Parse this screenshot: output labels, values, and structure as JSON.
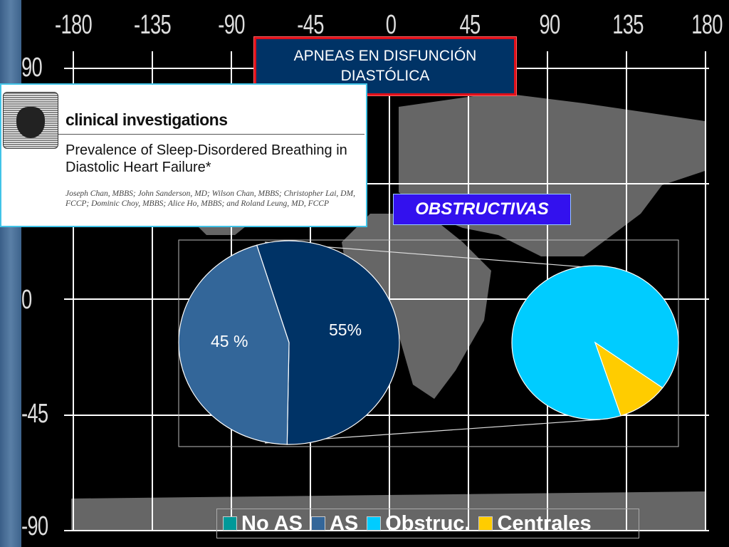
{
  "slide_title": "APNEAS EN DISFUNCIÓN DIASTÓLICA",
  "map_axes": {
    "longitude_labels": [
      "-180",
      "-135",
      "-90",
      "-45",
      "0",
      "45",
      "90",
      "135",
      "180"
    ],
    "latitude_labels": [
      "90",
      "0",
      "-45",
      "-90"
    ]
  },
  "paper": {
    "section": "clinical investigations",
    "title": "Prevalence of Sleep-Disordered Breathing in Diastolic Heart Failure*",
    "authors": "Joseph Chan, MBBS; John Sanderson, MD; Wilson Chan, MBBS; Christopher Lai, DM, FCCP; Dominic Choy, MBBS; Alice Ho, MBBS; and Roland Leung, MD, FCCP"
  },
  "callout": "OBSTRUCTIVAS",
  "chart_data": [
    {
      "type": "pie",
      "categories": [
        "AS",
        "No AS"
      ],
      "values": [
        45,
        55
      ],
      "data_labels": [
        "45 %",
        "55%"
      ],
      "colors": [
        "#336699",
        "#003366"
      ]
    },
    {
      "type": "pie",
      "categories": [
        "Obstruc.",
        "Centrales"
      ],
      "values": [
        90,
        10
      ],
      "colors": [
        "#00ccff",
        "#ffcc00"
      ]
    }
  ],
  "legend": [
    {
      "label": "No AS",
      "color": "#009999"
    },
    {
      "label": "AS",
      "color": "#336699"
    },
    {
      "label": "Obstruc.",
      "color": "#00ccff"
    },
    {
      "label": "Centrales",
      "color": "#ffcc00"
    }
  ]
}
